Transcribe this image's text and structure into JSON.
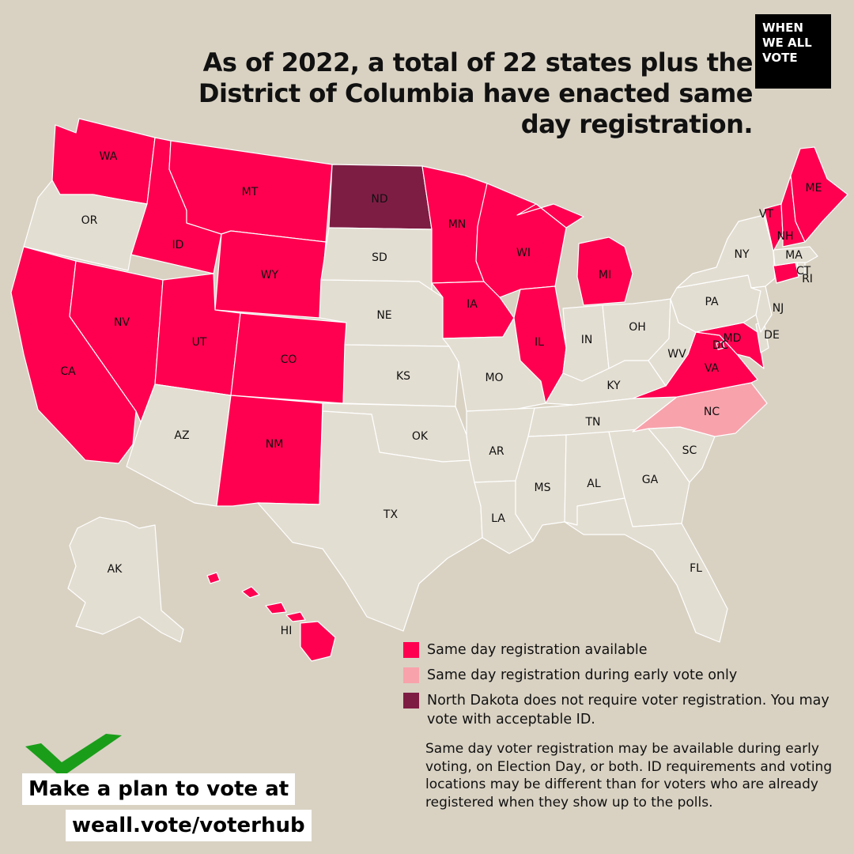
{
  "title": "As of 2022, a total of 22 states plus the District of Columbia have enacted same day registration.",
  "logo": {
    "lines": [
      "WHEN",
      "WE ALL",
      "VOTE"
    ]
  },
  "colors": {
    "background": "#d9d2c3",
    "available": "#ff0050",
    "early_vote_only": "#f8a2ac",
    "no_registration": "#7e1d44",
    "not_available": "#e3ded2",
    "checkmark": "#1a9e1a"
  },
  "legend": [
    {
      "category": "available",
      "label": "Same day registration available"
    },
    {
      "category": "early_vote_only",
      "label": "Same day registration during early vote only"
    },
    {
      "category": "no_registration",
      "label": "North Dakota does not require voter registration. You may vote with acceptable ID."
    }
  ],
  "note": "Same day voter registration may be available during early voting, on Election Day, or both. ID requirements and voting locations may be different than for voters who are already registered when they show up to the polls.",
  "cta": {
    "line1": "Make a plan to vote at",
    "line2": "weall.vote/voterhub"
  },
  "states": [
    {
      "abbr": "WA",
      "category": "available"
    },
    {
      "abbr": "OR",
      "category": "not_available"
    },
    {
      "abbr": "CA",
      "category": "available"
    },
    {
      "abbr": "ID",
      "category": "available"
    },
    {
      "abbr": "NV",
      "category": "available"
    },
    {
      "abbr": "MT",
      "category": "available"
    },
    {
      "abbr": "WY",
      "category": "available"
    },
    {
      "abbr": "UT",
      "category": "available"
    },
    {
      "abbr": "CO",
      "category": "available"
    },
    {
      "abbr": "AZ",
      "category": "not_available"
    },
    {
      "abbr": "NM",
      "category": "available"
    },
    {
      "abbr": "ND",
      "category": "no_registration"
    },
    {
      "abbr": "SD",
      "category": "not_available"
    },
    {
      "abbr": "NE",
      "category": "not_available"
    },
    {
      "abbr": "KS",
      "category": "not_available"
    },
    {
      "abbr": "OK",
      "category": "not_available"
    },
    {
      "abbr": "TX",
      "category": "not_available"
    },
    {
      "abbr": "MN",
      "category": "available"
    },
    {
      "abbr": "IA",
      "category": "available"
    },
    {
      "abbr": "MO",
      "category": "not_available"
    },
    {
      "abbr": "AR",
      "category": "not_available"
    },
    {
      "abbr": "LA",
      "category": "not_available"
    },
    {
      "abbr": "WI",
      "category": "available"
    },
    {
      "abbr": "IL",
      "category": "available"
    },
    {
      "abbr": "MI",
      "category": "available"
    },
    {
      "abbr": "IN",
      "category": "not_available"
    },
    {
      "abbr": "OH",
      "category": "not_available"
    },
    {
      "abbr": "KY",
      "category": "not_available"
    },
    {
      "abbr": "TN",
      "category": "not_available"
    },
    {
      "abbr": "MS",
      "category": "not_available"
    },
    {
      "abbr": "AL",
      "category": "not_available"
    },
    {
      "abbr": "GA",
      "category": "not_available"
    },
    {
      "abbr": "FL",
      "category": "not_available"
    },
    {
      "abbr": "SC",
      "category": "not_available"
    },
    {
      "abbr": "NC",
      "category": "early_vote_only"
    },
    {
      "abbr": "VA",
      "category": "available"
    },
    {
      "abbr": "WV",
      "category": "not_available"
    },
    {
      "abbr": "MD",
      "category": "available"
    },
    {
      "abbr": "DE",
      "category": "not_available"
    },
    {
      "abbr": "DC",
      "category": "available"
    },
    {
      "abbr": "PA",
      "category": "not_available"
    },
    {
      "abbr": "NJ",
      "category": "not_available"
    },
    {
      "abbr": "NY",
      "category": "not_available"
    },
    {
      "abbr": "CT",
      "category": "available"
    },
    {
      "abbr": "RI",
      "category": "not_available"
    },
    {
      "abbr": "MA",
      "category": "not_available"
    },
    {
      "abbr": "VT",
      "category": "available"
    },
    {
      "abbr": "NH",
      "category": "available"
    },
    {
      "abbr": "ME",
      "category": "available"
    },
    {
      "abbr": "AK",
      "category": "not_available"
    },
    {
      "abbr": "HI",
      "category": "available"
    }
  ]
}
